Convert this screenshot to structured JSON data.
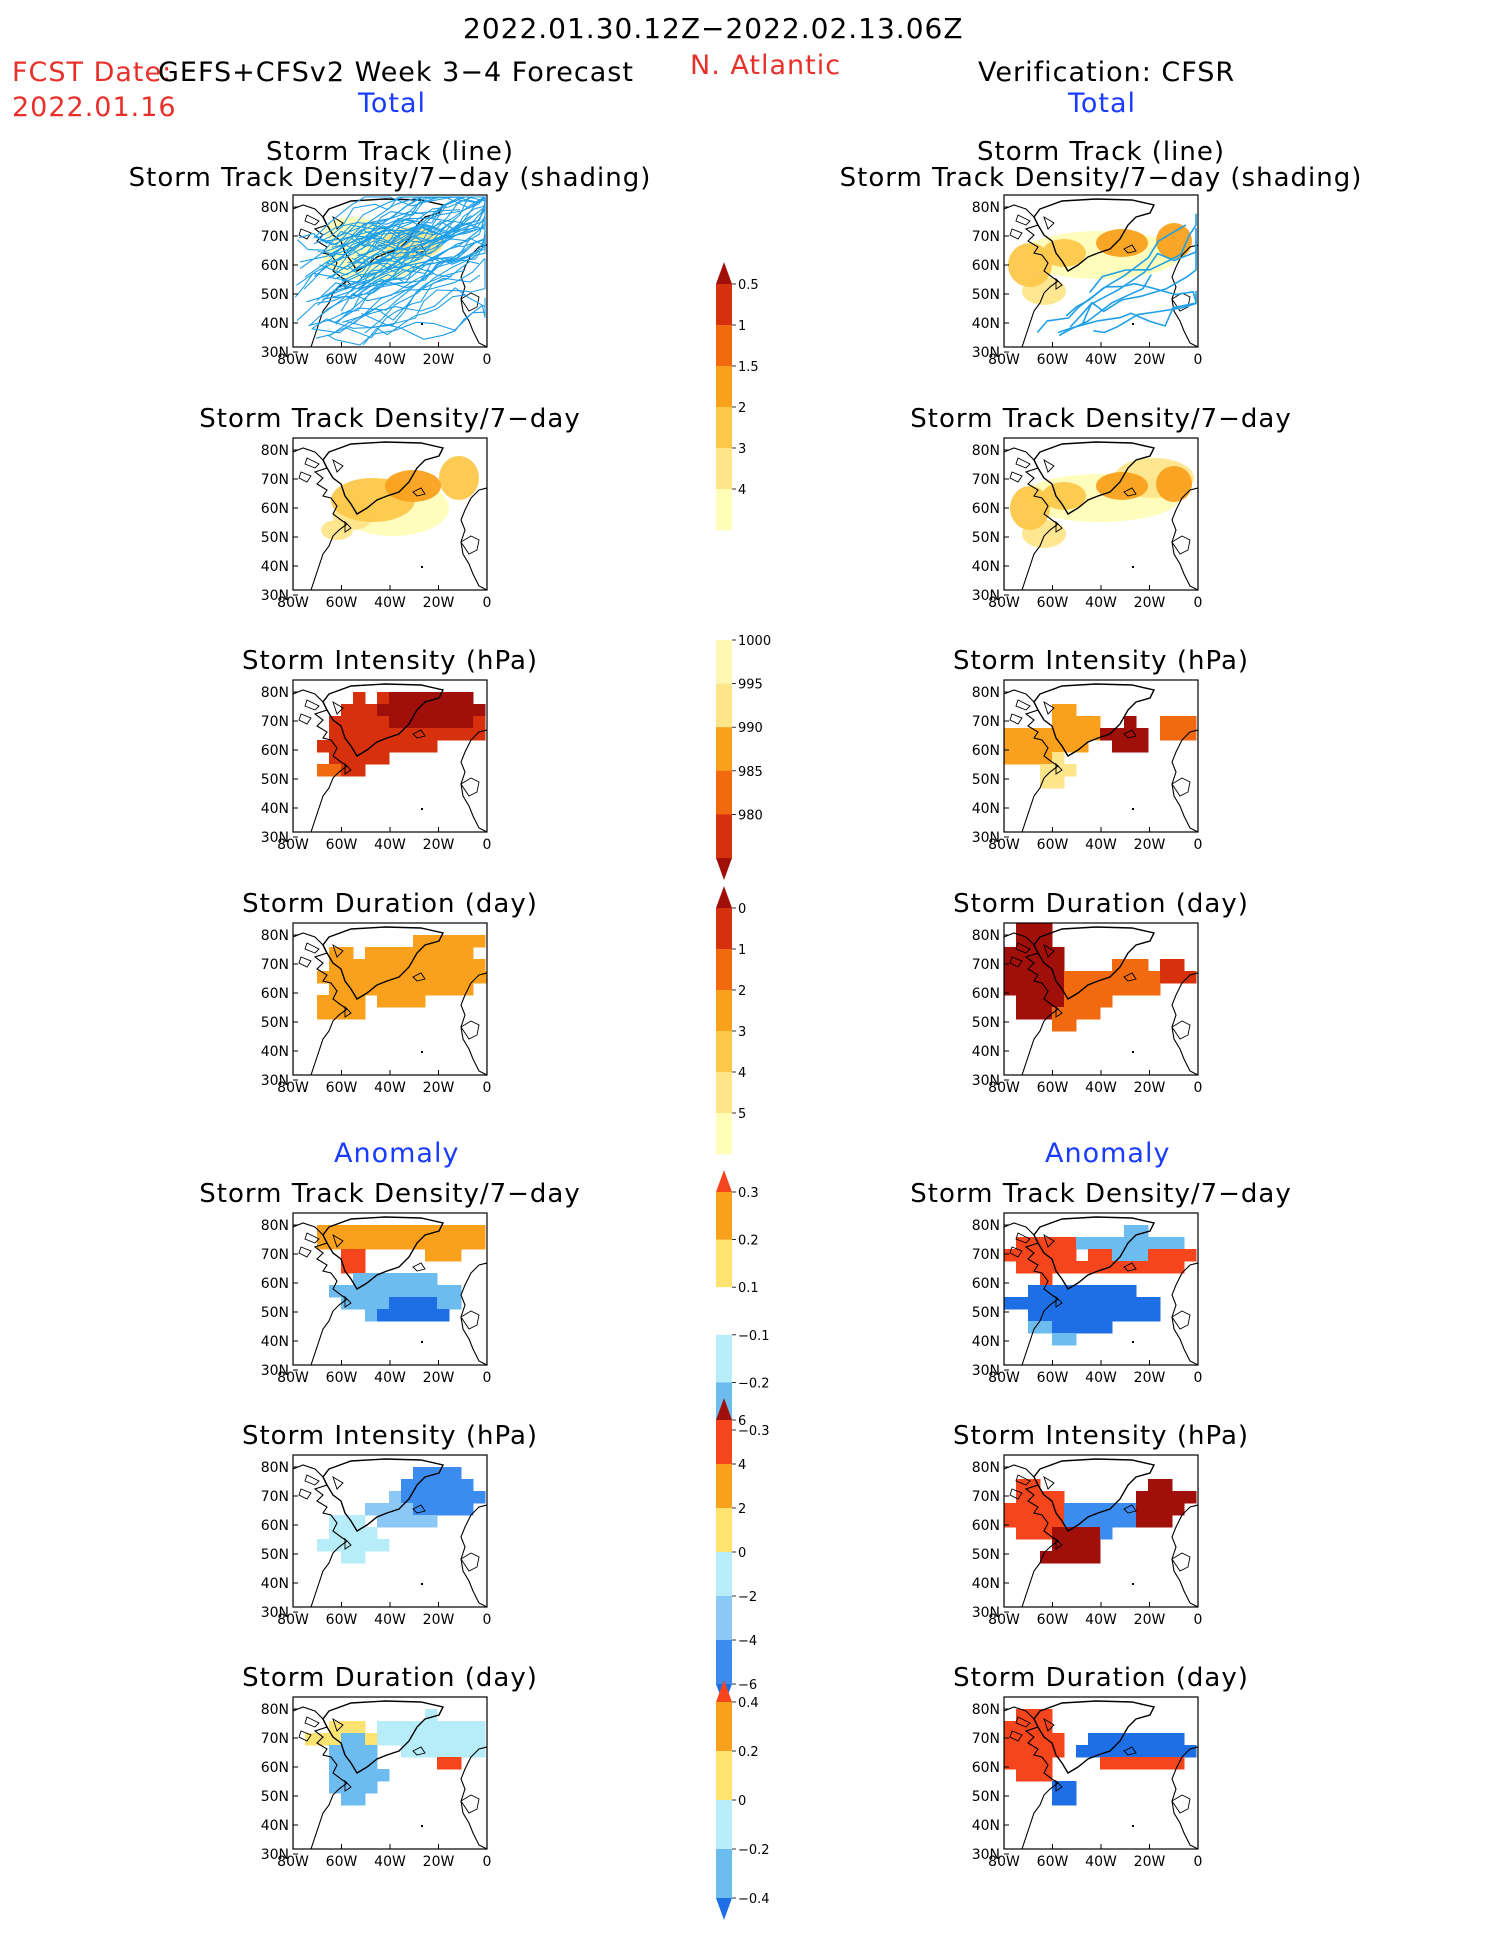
{
  "header": {
    "period": "2022.01.30.12Z−2022.02.13.06Z",
    "fcst_prefix": "FCST Date:",
    "fcst_model": "GEFS+CFSv2 Week 3−4 Forecast",
    "fcst_date": "2022.01.16",
    "region": "N. Atlantic",
    "verification": "Verification: CFSR",
    "left_section": "Total",
    "right_section": "Total",
    "left_anomaly": "Anomaly",
    "right_anomaly": "Anomaly"
  },
  "colors": {
    "title_red": "#e8302a",
    "section_blue": "#1a3cff",
    "track_line": "#1f9fe8",
    "land_outline": "#000000"
  },
  "colorbars": [
    {
      "id": "density",
      "labels": [
        "0.5",
        "1",
        "1.5",
        "2",
        "3",
        "4"
      ],
      "colors": [
        "#fffdb8",
        "#ffe58a",
        "#fdc84a",
        "#f9a11d",
        "#f16a10",
        "#d7300d",
        "#a00f0a"
      ],
      "arrow": "up"
    },
    {
      "id": "intensity",
      "labels": [
        "1000",
        "995",
        "990",
        "985",
        "980"
      ],
      "colors": [
        "#fff8b2",
        "#fde58a",
        "#f9a11d",
        "#f16a10",
        "#d7300d",
        "#a00f0a"
      ],
      "arrow": "down"
    },
    {
      "id": "duration",
      "labels": [
        "0",
        "1",
        "2",
        "3",
        "4",
        "5"
      ],
      "colors": [
        "#fffdb8",
        "#ffe58a",
        "#fdc84a",
        "#f9a11d",
        "#f16a10",
        "#d7300d",
        "#a00f0a"
      ],
      "arrow": "up"
    },
    {
      "id": "density_anom",
      "labels": [
        "0.3",
        "0.2",
        "0.1",
        "−0.1",
        "−0.2",
        "−0.3"
      ],
      "colors": [
        "#f5451c",
        "#f9a11d",
        "#fde371",
        "#ffffff",
        "#b7ecf9",
        "#6cbcf0",
        "#1e6fe6"
      ],
      "arrow": "both"
    },
    {
      "id": "intensity_anom",
      "labels": [
        "6",
        "4",
        "2",
        "0",
        "−2",
        "−4",
        "−6"
      ],
      "colors": [
        "#a00f0a",
        "#f5451c",
        "#f9a11d",
        "#fde371",
        "#b7ecf9",
        "#8cc8f5",
        "#3c8cf0",
        "#1e6fe6"
      ],
      "arrow": "both"
    },
    {
      "id": "duration_anom",
      "labels": [
        "0.4",
        "0.2",
        "0",
        "−0.2",
        "−0.4"
      ],
      "colors": [
        "#f5451c",
        "#f9a11d",
        "#fde371",
        "#b7ecf9",
        "#6cbcf0",
        "#1e6fe6"
      ],
      "arrow": "both"
    }
  ],
  "chart_data": [
    {
      "id": "fcst_track",
      "type": "heatmap",
      "side": "forecast",
      "title": [
        "Storm Track (line)",
        "Storm Track Density/7−day (shading)"
      ],
      "series": [
        {
          "name": "Storm Track (line)"
        }
      ],
      "xticks": [
        "80W",
        "60W",
        "40W",
        "20W",
        "0"
      ],
      "yticks": [
        "80N",
        "70N",
        "60N",
        "50N",
        "40N",
        "30N"
      ]
    },
    {
      "id": "fcst_density",
      "type": "heatmap",
      "side": "forecast",
      "title": [
        "Storm Track Density/7−day"
      ],
      "xticks": [
        "80W",
        "60W",
        "40W",
        "20W",
        "0"
      ],
      "yticks": [
        "80N",
        "70N",
        "60N",
        "50N",
        "40N",
        "30N"
      ]
    },
    {
      "id": "fcst_intensity",
      "type": "heatmap",
      "side": "forecast",
      "title": [
        "Storm Intensity (hPa)"
      ],
      "xticks": [
        "80W",
        "60W",
        "40W",
        "20W",
        "0"
      ],
      "yticks": [
        "80N",
        "70N",
        "60N",
        "50N",
        "40N",
        "30N"
      ]
    },
    {
      "id": "fcst_duration",
      "type": "heatmap",
      "side": "forecast",
      "title": [
        "Storm Duration (day)"
      ],
      "xticks": [
        "80W",
        "60W",
        "40W",
        "20W",
        "0"
      ],
      "yticks": [
        "80N",
        "70N",
        "60N",
        "50N",
        "40N",
        "30N"
      ]
    },
    {
      "id": "fcst_density_anom",
      "type": "heatmap",
      "side": "forecast",
      "title": [
        "Storm Track Density/7−day"
      ],
      "xticks": [
        "80W",
        "60W",
        "40W",
        "20W",
        "0"
      ],
      "yticks": [
        "80N",
        "70N",
        "60N",
        "50N",
        "40N",
        "30N"
      ]
    },
    {
      "id": "fcst_intensity_anom",
      "type": "heatmap",
      "side": "forecast",
      "title": [
        "Storm Intensity (hPa)"
      ],
      "xticks": [
        "80W",
        "60W",
        "40W",
        "20W",
        "0"
      ],
      "yticks": [
        "80N",
        "70N",
        "60N",
        "50N",
        "40N",
        "30N"
      ]
    },
    {
      "id": "fcst_duration_anom",
      "type": "heatmap",
      "side": "forecast",
      "title": [
        "Storm Duration (day)"
      ],
      "xticks": [
        "80W",
        "60W",
        "40W",
        "20W",
        "0"
      ],
      "yticks": [
        "80N",
        "70N",
        "60N",
        "50N",
        "40N",
        "30N"
      ]
    },
    {
      "id": "ver_track",
      "type": "heatmap",
      "side": "verification",
      "title": [
        "Storm Track (line)",
        "Storm Track Density/7−day (shading)"
      ],
      "series": [
        {
          "name": "Storm Track (line)"
        }
      ],
      "xticks": [
        "80W",
        "60W",
        "40W",
        "20W",
        "0"
      ],
      "yticks": [
        "80N",
        "70N",
        "60N",
        "50N",
        "40N",
        "30N"
      ]
    },
    {
      "id": "ver_density",
      "type": "heatmap",
      "side": "verification",
      "title": [
        "Storm Track Density/7−day"
      ],
      "xticks": [
        "80W",
        "60W",
        "40W",
        "20W",
        "0"
      ],
      "yticks": [
        "80N",
        "70N",
        "60N",
        "50N",
        "40N",
        "30N"
      ]
    },
    {
      "id": "ver_intensity",
      "type": "heatmap",
      "side": "verification",
      "title": [
        "Storm Intensity (hPa)"
      ],
      "xticks": [
        "80W",
        "60W",
        "40W",
        "20W",
        "0"
      ],
      "yticks": [
        "80N",
        "70N",
        "60N",
        "50N",
        "40N",
        "30N"
      ]
    },
    {
      "id": "ver_duration",
      "type": "heatmap",
      "side": "verification",
      "title": [
        "Storm Duration (day)"
      ],
      "xticks": [
        "80W",
        "60W",
        "40W",
        "20W",
        "0"
      ],
      "yticks": [
        "80N",
        "70N",
        "60N",
        "50N",
        "40N",
        "30N"
      ]
    },
    {
      "id": "ver_density_anom",
      "type": "heatmap",
      "side": "verification",
      "title": [
        "Storm Track Density/7−day"
      ],
      "xticks": [
        "80W",
        "60W",
        "40W",
        "20W",
        "0"
      ],
      "yticks": [
        "80N",
        "70N",
        "60N",
        "50N",
        "40N",
        "30N"
      ]
    },
    {
      "id": "ver_intensity_anom",
      "type": "heatmap",
      "side": "verification",
      "title": [
        "Storm Intensity (hPa)"
      ],
      "xticks": [
        "80W",
        "60W",
        "40W",
        "20W",
        "0"
      ],
      "yticks": [
        "80N",
        "70N",
        "60N",
        "50N",
        "40N",
        "30N"
      ]
    },
    {
      "id": "ver_duration_anom",
      "type": "heatmap",
      "side": "verification",
      "title": [
        "Storm Duration (day)"
      ],
      "xticks": [
        "80W",
        "60W",
        "40W",
        "20W",
        "0"
      ],
      "yticks": [
        "80N",
        "70N",
        "60N",
        "50N",
        "40N",
        "30N"
      ]
    }
  ]
}
